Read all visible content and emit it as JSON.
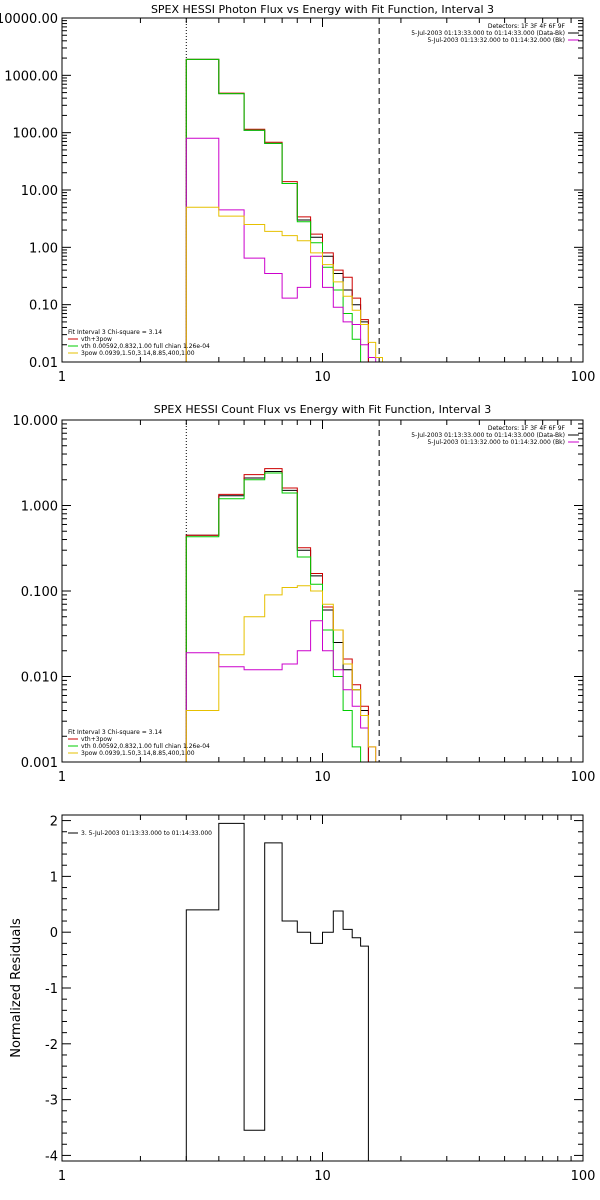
{
  "chart_data": [
    {
      "type": "line",
      "title": "SPEX HESSI Photon Flux vs Energy with Fit Function, Interval 3",
      "xscale": "log",
      "yscale": "log",
      "xlim": [
        1,
        100
      ],
      "ylim": [
        0.01,
        10000
      ],
      "x_tick_labels": [
        "1",
        "10",
        "100"
      ],
      "y_tick_values": [
        0.01,
        0.1,
        1,
        10,
        100,
        1000,
        10000
      ],
      "y_tick_labels": [
        "0.01",
        "0.10",
        "1.00",
        "10.00",
        "100.00",
        "1000.00",
        "10000.00"
      ],
      "vlines": [
        {
          "x": 3.0,
          "style": "dotted"
        },
        {
          "x": 16.5,
          "style": "dashed"
        }
      ],
      "legend_right": [
        {
          "text": "Detectors: 1F 3F 4F 6F 9F",
          "color": ""
        },
        {
          "text": "5-Jul-2003 01:13:33.000 to 01:14:33.000 (Data-Bk)",
          "color": "#000000"
        },
        {
          "text": "5-Jul-2003 01:13:32.000 to 01:14:32.000 (Bk)",
          "color": "#cc00cc"
        }
      ],
      "legend_left": [
        {
          "text": "Fit Interval 3   Chi-square = 3.14",
          "color": ""
        },
        {
          "text": "vth+3pow",
          "color": "#cc0000"
        },
        {
          "text": "vth 0.00592,0.832,1.00   full chian 1.26e-04",
          "color": "#00cc00"
        },
        {
          "text": "3pow 0.0939,1.50,3.14,8.85,400,1.00",
          "color": "#e6c000"
        }
      ],
      "edges": [
        3.0,
        4.0,
        5.0,
        6.0,
        7.0,
        8.0,
        9.0,
        10.0,
        11.0,
        12.0,
        13.0,
        14.0,
        15.0,
        16.0,
        17.0,
        18.0
      ],
      "series": [
        {
          "color": "#000000",
          "values": [
            1900,
            480,
            110,
            65,
            13,
            3.0,
            1.5,
            0.7,
            0.35,
            0.18,
            0.1,
            0.05,
            null,
            null,
            null
          ]
        },
        {
          "color": "#cc0000",
          "values": [
            1900,
            490,
            115,
            68,
            14,
            3.4,
            1.7,
            0.8,
            0.4,
            0.3,
            0.13,
            0.055,
            null,
            null,
            null
          ]
        },
        {
          "color": "#00cc00",
          "values": [
            1900,
            480,
            110,
            65,
            13,
            2.8,
            1.2,
            0.45,
            0.18,
            0.07,
            0.025,
            0.009,
            null,
            null,
            null
          ]
        },
        {
          "color": "#cc00cc",
          "values": [
            80,
            4.5,
            0.65,
            0.35,
            0.13,
            0.2,
            0.7,
            0.2,
            0.09,
            0.05,
            0.045,
            0.02,
            0.012,
            null,
            null
          ]
        },
        {
          "color": "#e6c000",
          "values": [
            5.0,
            3.5,
            2.5,
            1.9,
            1.6,
            1.3,
            0.8,
            0.5,
            0.25,
            0.14,
            0.08,
            0.045,
            0.022,
            0.012,
            null
          ]
        }
      ]
    },
    {
      "type": "line",
      "title": "SPEX HESSI Count Flux vs Energy with Fit Function, Interval 3",
      "xscale": "log",
      "yscale": "log",
      "xlim": [
        1,
        100
      ],
      "ylim": [
        0.001,
        10
      ],
      "x_tick_labels": [
        "1",
        "10",
        "100"
      ],
      "y_tick_values": [
        0.001,
        0.01,
        0.1,
        1,
        10
      ],
      "y_tick_labels": [
        "0.001",
        "0.010",
        "0.100",
        "1.000",
        "10.000"
      ],
      "vlines": [
        {
          "x": 3.0,
          "style": "dotted"
        },
        {
          "x": 16.5,
          "style": "dashed"
        }
      ],
      "legend_right": [
        {
          "text": "Detectors: 1F 3F 4F 6F 9F",
          "color": ""
        },
        {
          "text": "5-Jul-2003 01:13:33.000 to 01:14:33.000 (Data-Bk)",
          "color": "#000000"
        },
        {
          "text": "5-Jul-2003 01:13:32.000 to 01:14:32.000 (Bk)",
          "color": "#cc00cc"
        }
      ],
      "legend_left": [
        {
          "text": "Fit Interval 3   Chi-square = 3.14",
          "color": ""
        },
        {
          "text": "vth+3pow",
          "color": "#cc0000"
        },
        {
          "text": "vth 0.00592,0.832,1.00   full chian 1.26e-04",
          "color": "#00cc00"
        },
        {
          "text": "3pow 0.0939,1.50,3.14,8.85,400,1.00",
          "color": "#e6c000"
        }
      ],
      "edges": [
        3.0,
        4.0,
        5.0,
        6.0,
        7.0,
        8.0,
        9.0,
        10.0,
        11.0,
        12.0,
        13.0,
        14.0,
        15.0,
        16.0,
        17.0,
        18.0
      ],
      "series": [
        {
          "color": "#000000",
          "values": [
            0.45,
            1.3,
            2.1,
            2.5,
            1.5,
            0.3,
            0.15,
            0.06,
            0.025,
            0.012,
            0.007,
            0.004,
            null,
            null,
            null
          ]
        },
        {
          "color": "#cc0000",
          "values": [
            0.45,
            1.35,
            2.3,
            2.7,
            1.6,
            0.32,
            0.16,
            0.065,
            0.035,
            0.016,
            0.008,
            0.0045,
            null,
            null,
            null
          ]
        },
        {
          "color": "#00cc00",
          "values": [
            0.43,
            1.2,
            2.0,
            2.4,
            1.4,
            0.25,
            0.12,
            0.035,
            0.01,
            0.004,
            0.0015,
            null,
            null,
            null,
            null
          ]
        },
        {
          "color": "#cc00cc",
          "values": [
            0.019,
            0.013,
            0.012,
            0.012,
            0.014,
            0.02,
            0.045,
            0.02,
            0.012,
            0.007,
            0.0045,
            0.0025,
            0.0015,
            null,
            null
          ]
        },
        {
          "color": "#e6c000",
          "values": [
            0.004,
            0.018,
            0.05,
            0.09,
            0.11,
            0.115,
            0.1,
            0.07,
            0.035,
            0.014,
            0.007,
            0.0035,
            0.0015,
            0.0009,
            null
          ]
        }
      ]
    },
    {
      "type": "line",
      "title": "",
      "xscale": "log",
      "yscale": "linear",
      "xlim": [
        1,
        100
      ],
      "ylim": [
        -4.1,
        2.1
      ],
      "ylabel": "Normalized Residuals",
      "x_tick_labels": [
        "1",
        "10",
        "100"
      ],
      "y_tick_values": [
        -4,
        -3,
        -2,
        -1,
        0,
        1,
        2
      ],
      "y_tick_labels": [
        "-4",
        "-3",
        "-2",
        "-1",
        "0",
        "1",
        "2"
      ],
      "legend_left": [
        {
          "text": "3.  5-Jul-2003 01:13:33.000 to 01:14:33.000",
          "color": "#000000"
        }
      ],
      "edges": [
        3.0,
        4.0,
        5.0,
        6.0,
        7.0,
        8.0,
        9.0,
        10.0,
        11.0,
        12.0,
        13.0,
        14.0,
        15.0,
        16.5
      ],
      "series": [
        {
          "color": "#000000",
          "values": [
            0.4,
            1.95,
            -3.55,
            1.6,
            0.2,
            0.0,
            -0.2,
            0.0,
            0.38,
            0.05,
            -0.1,
            -0.25,
            null
          ]
        }
      ]
    }
  ]
}
